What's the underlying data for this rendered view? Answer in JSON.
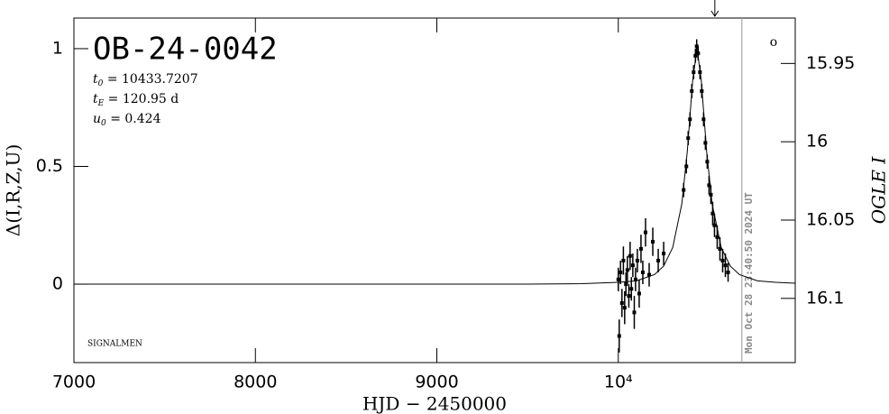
{
  "chart_data": {
    "type": "lightcurve",
    "title": "OB-24-0042",
    "params": [
      {
        "symbol": "t",
        "sub": "0",
        "text": " = 10433.7207"
      },
      {
        "symbol": "t",
        "sub": "E",
        "text": " = 120.95 d"
      },
      {
        "symbol": "u",
        "sub": "0",
        "text": " = 0.424"
      }
    ],
    "credit": "SIGNALMEN",
    "timestamp": "Mon Oct 28 23:40:50 2024 UT",
    "symbol": "o",
    "xlabel": "HJD − 2450000",
    "ylabel": "Δ(I,R,Z,U)",
    "y2label": "OGLE I",
    "xlim": [
      7000,
      10975
    ],
    "xticks": [
      7000,
      8000,
      9000,
      {
        "value": 10000,
        "label": "10⁴"
      }
    ],
    "ylim": [
      -0.333,
      1.13
    ],
    "yticks": [
      0,
      0.5,
      1
    ],
    "y2lim": [
      16.141,
      15.921
    ],
    "y2ticks": [
      15.95,
      16,
      16.05,
      16.1
    ],
    "vlines": {
      "now": 10681,
      "arrow": 10532
    },
    "series": [
      {
        "name": "model",
        "color": "#000000",
        "x": [
          7000,
          9500,
          9800,
          10000,
          10100,
          10200,
          10250,
          10300,
          10350,
          10380,
          10410,
          10434,
          10457,
          10487,
          10517,
          10567,
          10617,
          10667,
          10767,
          10867,
          10975
        ],
        "values": [
          0,
          0,
          0.002,
          0.008,
          0.014,
          0.041,
          0.077,
          0.156,
          0.341,
          0.562,
          0.867,
          1.0,
          0.867,
          0.562,
          0.341,
          0.156,
          0.077,
          0.041,
          0.014,
          0.008,
          0.004
        ]
      },
      {
        "name": "OGLE",
        "color": "#000000",
        "x": [
          10000,
          10005,
          10012,
          10020,
          10028,
          10035,
          10042,
          10050,
          10058,
          10065,
          10072,
          10080,
          10088,
          10095,
          10105,
          10115,
          10125,
          10135,
          10150,
          10170,
          10190,
          10220,
          10250,
          10360,
          10375,
          10385,
          10395,
          10405,
          10415,
          10425,
          10432,
          10440,
          10450,
          10460,
          10470,
          10480,
          10490,
          10500,
          10510,
          10520,
          10530,
          10545,
          10560,
          10575,
          10590,
          10605
        ],
        "values": [
          0.02,
          -0.22,
          0.05,
          -0.08,
          0.1,
          -0.1,
          0.0,
          0.06,
          -0.05,
          0.12,
          -0.02,
          0.08,
          -0.12,
          0.02,
          0.1,
          -0.04,
          0.15,
          0.05,
          0.22,
          0.04,
          0.18,
          0.1,
          0.13,
          0.4,
          0.5,
          0.62,
          0.7,
          0.82,
          0.9,
          0.97,
          1.01,
          0.98,
          0.9,
          0.82,
          0.7,
          0.6,
          0.52,
          0.42,
          0.38,
          0.3,
          0.25,
          0.2,
          0.15,
          0.1,
          0.08,
          0.05
        ],
        "errors": [
          0.05,
          0.07,
          0.05,
          0.06,
          0.06,
          0.07,
          0.05,
          0.06,
          0.05,
          0.06,
          0.05,
          0.05,
          0.07,
          0.05,
          0.05,
          0.06,
          0.06,
          0.05,
          0.06,
          0.05,
          0.06,
          0.05,
          0.05,
          0.03,
          0.03,
          0.03,
          0.03,
          0.03,
          0.03,
          0.03,
          0.03,
          0.03,
          0.03,
          0.03,
          0.03,
          0.03,
          0.03,
          0.04,
          0.04,
          0.05,
          0.05,
          0.05,
          0.05,
          0.05,
          0.05,
          0.04
        ]
      }
    ]
  }
}
